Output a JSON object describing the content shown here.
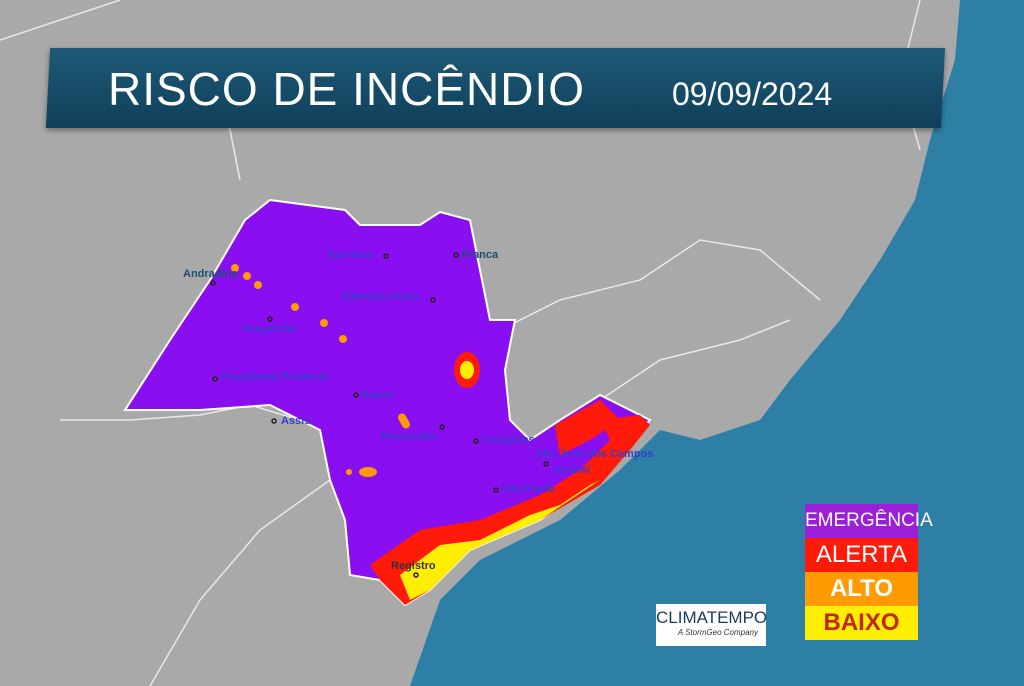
{
  "header": {
    "title": "RISCO DE INCÊNDIO",
    "date": "09/09/2024"
  },
  "cities": [
    {
      "name": "Andradina"
    },
    {
      "name": "Barretos"
    },
    {
      "name": "Franca"
    },
    {
      "name": "Ribeirão Preto"
    },
    {
      "name": "Araçatuba"
    },
    {
      "name": "Presidente Prudente"
    },
    {
      "name": "Bauru"
    },
    {
      "name": "Assis"
    },
    {
      "name": "Piracicaba"
    },
    {
      "name": "Campinas"
    },
    {
      "name": "São José dos Campos"
    },
    {
      "name": "Jacareí"
    },
    {
      "name": "São Paulo"
    },
    {
      "name": "Registro"
    }
  ],
  "legend": [
    {
      "label": "EMERGÊNCIA",
      "color": "#9b1fd6",
      "text_color": "#ffffff"
    },
    {
      "label": "ALERTA",
      "color": "#ff1a0a",
      "text_color": "#ffffff"
    },
    {
      "label": "ALTO",
      "color": "#ff9a00",
      "text_color": "#ffffff"
    },
    {
      "label": "BAIXO",
      "color": "#ffee00",
      "text_color": "#c0281a"
    }
  ],
  "logo": {
    "name": "CLIMATEMPO",
    "tagline": "A StormGeo Company"
  },
  "colors": {
    "land": "#a9a9a9",
    "ocean": "#2e7fa6",
    "state": "#8a0ff0",
    "banner": "#174c69"
  }
}
